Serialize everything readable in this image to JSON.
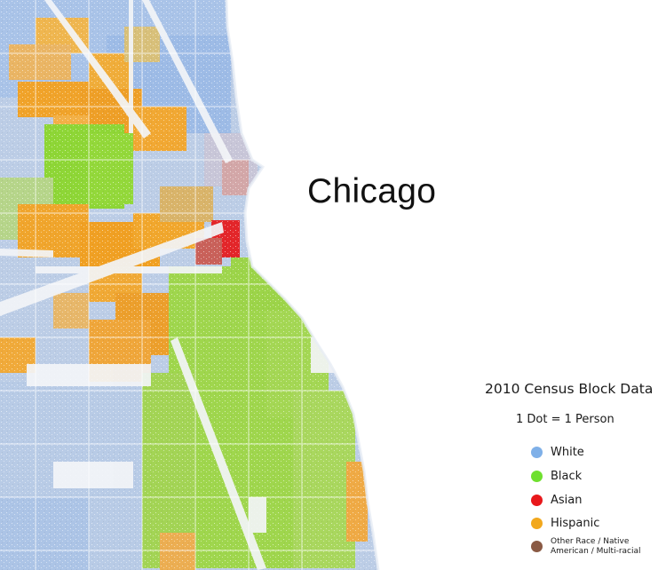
{
  "map": {
    "title": "Chicago",
    "legend": {
      "title": "2010 Census Block Data",
      "subtitle": "1 Dot = 1 Person",
      "items": [
        {
          "label": "White",
          "color": "#7fb0e8"
        },
        {
          "label": "Black",
          "color": "#6fe02f"
        },
        {
          "label": "Asian",
          "color": "#e8181b"
        },
        {
          "label": "Hispanic",
          "color": "#f2a81d"
        },
        {
          "label": "Other Race / Native American / Multi-racial",
          "color": "#8a5a44"
        }
      ]
    },
    "colors": {
      "water": "#ffffff",
      "white_pop": "#b4c8e4",
      "black_pop": "#a6d65a",
      "asian_pop": "#e22a2a",
      "hispanic_pop": "#eeae3f",
      "other_pop": "#b07a6a",
      "corridor": "#f4f5f7"
    }
  }
}
